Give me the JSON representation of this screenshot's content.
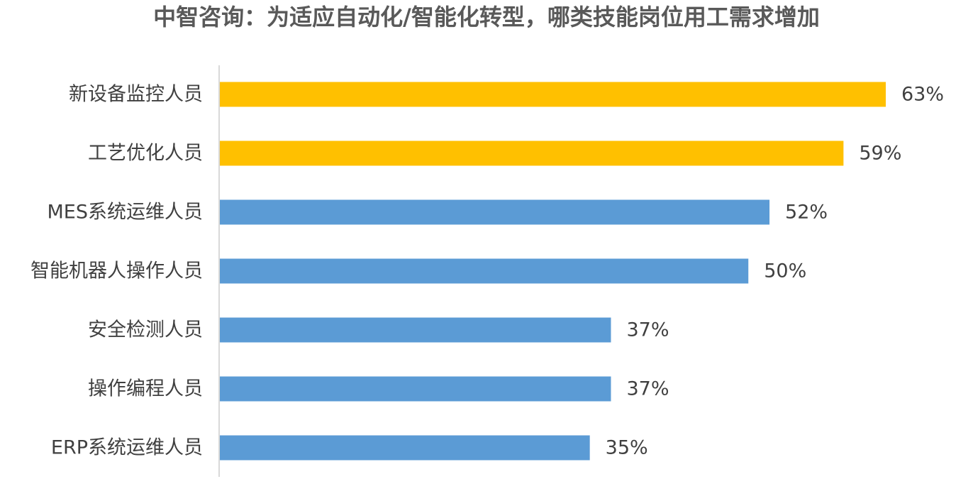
{
  "chart_data": {
    "type": "bar",
    "orientation": "horizontal",
    "title": "中智咨询：为适应自动化/智能化转型，哪类技能岗位用工需求增加",
    "categories": [
      "新设备监控人员",
      "工艺优化人员",
      "MES系统运维人员",
      "智能机器人操作人员",
      "安全检测人员",
      "操作编程人员",
      "ERP系统运维人员"
    ],
    "values": [
      63,
      59,
      52,
      50,
      37,
      37,
      35
    ],
    "value_labels": [
      "63%",
      "59%",
      "52%",
      "50%",
      "37%",
      "37%",
      "35%"
    ],
    "unit": "%",
    "highlight_count": 2,
    "colors": {
      "highlight": "#FFC000",
      "default": "#5B9BD5",
      "axis": "#D9D9D9"
    },
    "xlim": [
      0,
      63
    ],
    "grid": false,
    "legend": "none"
  }
}
